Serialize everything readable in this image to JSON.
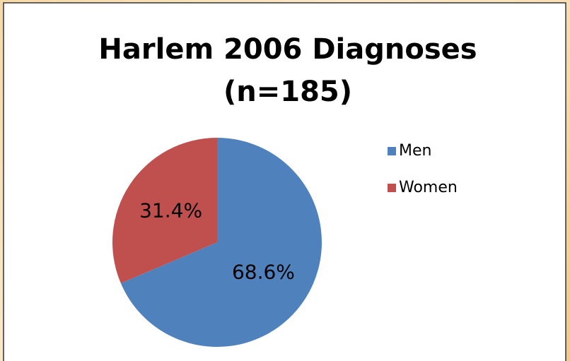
{
  "chart_data": {
    "type": "pie",
    "title": "Harlem 2006 Diagnoses",
    "subtitle": "(n=185)",
    "categories": [
      "Men",
      "Women"
    ],
    "values": [
      68.6,
      31.4
    ],
    "value_labels": [
      "68.6%",
      "31.4%"
    ],
    "colors": [
      "#4f81bd",
      "#c0504d"
    ],
    "legend": "right"
  }
}
